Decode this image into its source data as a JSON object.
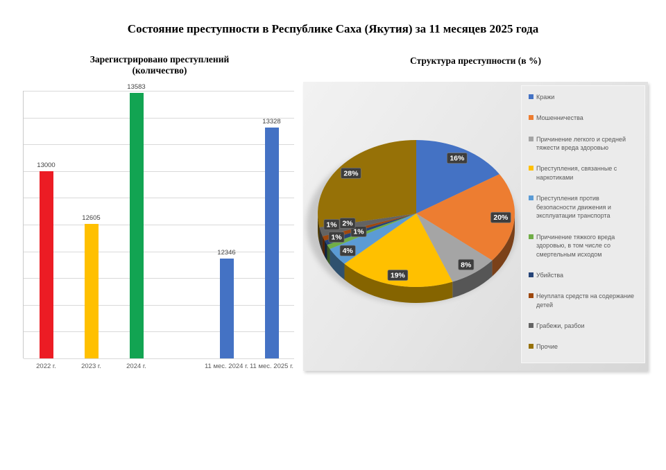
{
  "header": {
    "title": "Состояние преступности в Республике Саха (Якутия) за 11 месяцев 2025 года"
  },
  "chart_data": [
    {
      "type": "bar",
      "title_lines": [
        "Зарегистрировано преступлений",
        "(количество)"
      ],
      "categories": [
        "2022 г.",
        "2023 г.",
        "2024 г.",
        "",
        "11 мес. 2024 г.",
        "11 мес. 2025 г."
      ],
      "values": [
        13000,
        12605,
        13583,
        null,
        12346,
        13328
      ],
      "bar_colors": [
        "#ec1c24",
        "#ffc000",
        "#12a452",
        null,
        "#4472c4",
        "#4472c4"
      ],
      "ylim": [
        11600,
        13600
      ],
      "grid_step": 200,
      "grid": true,
      "legend_position": "none"
    },
    {
      "type": "pie",
      "style": "3d",
      "title": "Структура преступности (в %)",
      "labels": [
        "Кражи",
        "Мошенничества",
        "Причинение легкого и средней тяжести вреда здоровью",
        "Преступления, связанные с наркотиками",
        "Преступления против безопасности движения и эксплуатации транспорта",
        "Причинение тяжкого вреда здоровью, в том числе со смертельным исходом",
        "Убийства",
        "Неуплата средств на содержание детей",
        "Грабежи, разбои",
        "Прочие"
      ],
      "values": [
        16,
        20,
        8,
        19,
        4,
        1,
        1,
        1,
        2,
        28
      ],
      "data_labels": [
        "16%",
        "20%",
        "8%",
        "19%",
        "4%",
        "1%",
        "1%",
        "1%",
        "2%",
        "28%"
      ],
      "colors": [
        "#4472c4",
        "#ed7d31",
        "#a5a5a5",
        "#ffc000",
        "#5b9bd5",
        "#70ad47",
        "#264478",
        "#9e480e",
        "#636363",
        "#967107"
      ],
      "legend_position": "right",
      "data_label_style": {
        "bg": "#3d3d3d",
        "text": "#ffffff"
      }
    }
  ]
}
